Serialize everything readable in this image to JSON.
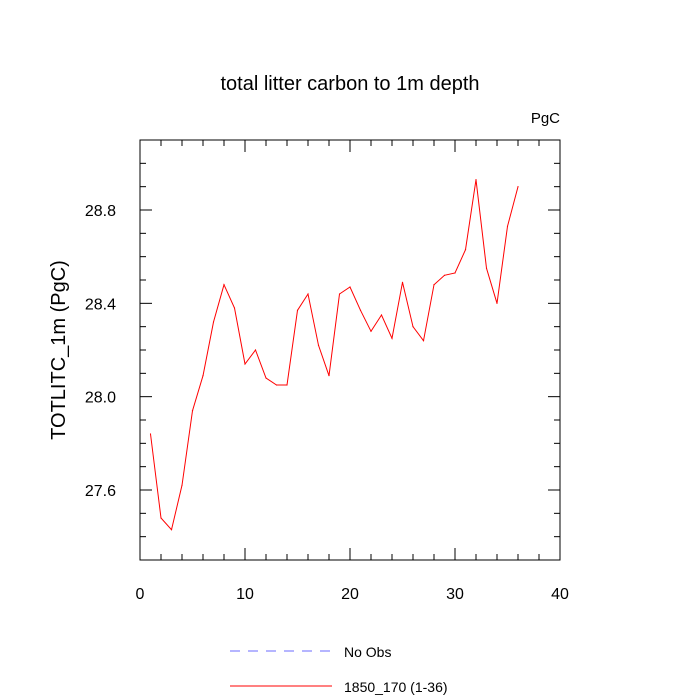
{
  "chart_data": {
    "type": "line",
    "title": "total litter carbon to 1m depth",
    "units_label": "PgC",
    "ylabel": "TOTLITC_1m  (PgC)",
    "xlabel": "",
    "xlim": [
      0,
      40
    ],
    "ylim": [
      27.3,
      29.1
    ],
    "xticks": [
      0,
      10,
      20,
      30,
      40
    ],
    "xtick_labels": [
      "0",
      "10",
      "20",
      "30",
      "40"
    ],
    "yticks": [
      27.6,
      28.0,
      28.4,
      28.8
    ],
    "ytick_labels": [
      "27.6",
      "28.0",
      "28.4",
      "28.8"
    ],
    "grid": false,
    "legend_position": "bottom",
    "series": [
      {
        "name": "No Obs",
        "color": "#6b6bff",
        "style": "dashed",
        "x": [],
        "y": []
      },
      {
        "name": "1850_170 (1-36)",
        "color": "#ff0000",
        "style": "solid",
        "x": [
          1,
          2,
          3,
          4,
          5,
          6,
          7,
          8,
          9,
          10,
          11,
          12,
          13,
          14,
          15,
          16,
          17,
          18,
          19,
          20,
          21,
          22,
          23,
          24,
          25,
          26,
          27,
          28,
          29,
          30,
          31,
          32,
          33,
          34,
          35,
          36
        ],
        "y": [
          27.84,
          27.48,
          27.43,
          27.62,
          27.94,
          28.09,
          28.32,
          28.48,
          28.38,
          28.14,
          28.2,
          28.08,
          28.05,
          28.05,
          28.37,
          28.44,
          28.22,
          28.09,
          28.44,
          28.47,
          28.37,
          28.28,
          28.35,
          28.25,
          28.49,
          28.3,
          28.24,
          28.48,
          28.52,
          28.53,
          28.63,
          28.93,
          28.55,
          28.4,
          28.73,
          28.9
        ]
      }
    ]
  }
}
